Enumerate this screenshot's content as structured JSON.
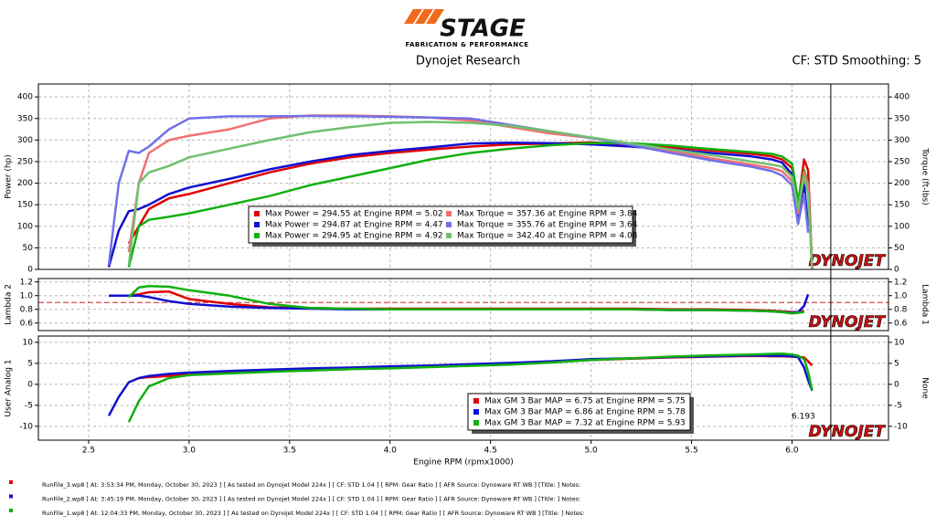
{
  "header": {
    "logo": "STAGE",
    "logo_subtitle": "FABRICATION & PERFORMANCE",
    "title": "Dynojet Research",
    "settings": "CF: STD Smoothing: 5"
  },
  "watermark": "DYNOJET",
  "chart_data": [
    {
      "type": "line",
      "ylabel": "Power (hp)",
      "y2label": "Torque (ft-lbs)",
      "xlim": [
        2.25,
        6.48
      ],
      "ylim": [
        0,
        430
      ],
      "yticks": [
        0,
        50,
        100,
        150,
        200,
        250,
        300,
        350,
        400
      ],
      "y2lim": [
        0,
        430
      ],
      "y2ticks": [
        0,
        50,
        100,
        150,
        200,
        250,
        300,
        350,
        400
      ],
      "grid": true,
      "x": [
        2.6,
        2.65,
        2.7,
        2.75,
        2.8,
        2.9,
        3.0,
        3.2,
        3.4,
        3.6,
        3.8,
        4.0,
        4.2,
        4.4,
        4.6,
        4.8,
        5.0,
        5.2,
        5.4,
        5.6,
        5.8,
        5.9,
        5.95,
        6.0,
        6.03,
        6.06,
        6.08,
        6.1
      ],
      "series": [
        {
          "name": "Max Power = 294.55 at Engine RPM = 5.02",
          "color": "#e00000",
          "values": [
            null,
            null,
            60,
            100,
            140,
            165,
            175,
            200,
            225,
            245,
            260,
            270,
            278,
            285,
            290,
            292,
            294.55,
            290,
            283,
            276,
            268,
            262,
            255,
            235,
            150,
            255,
            230,
            0
          ]
        },
        {
          "name": "Max Power = 294.87 at Engine RPM = 4.47",
          "color": "#1010d0",
          "values": [
            5,
            90,
            135,
            140,
            150,
            175,
            190,
            210,
            232,
            250,
            265,
            275,
            283,
            292,
            294,
            293,
            290,
            285,
            278,
            270,
            262,
            255,
            248,
            220,
            120,
            200,
            100,
            null
          ]
        },
        {
          "name": "Max Power = 294.95 at Engine RPM = 4.92",
          "color": "#10b010",
          "values": [
            null,
            null,
            5,
            100,
            115,
            122,
            130,
            150,
            170,
            195,
            215,
            235,
            255,
            270,
            280,
            288,
            293,
            293,
            287,
            279,
            272,
            268,
            262,
            245,
            160,
            230,
            200,
            0
          ]
        },
        {
          "name": "Max Torque = 357.36 at Engine RPM = 3.84",
          "color": "#f07070",
          "axis": "y2",
          "values": [
            null,
            null,
            40,
            200,
            270,
            300,
            310,
            325,
            350,
            357,
            357,
            355,
            352,
            345,
            330,
            315,
            305,
            290,
            275,
            258,
            243,
            235,
            228,
            205,
            130,
            225,
            195,
            0
          ]
        },
        {
          "name": "Max Torque = 355.76 at Engine RPM = 3.64",
          "color": "#7070e8",
          "axis": "y2",
          "values": [
            10,
            200,
            275,
            270,
            285,
            325,
            350,
            355,
            355,
            355.76,
            355,
            354,
            352,
            350,
            335,
            320,
            305,
            288,
            270,
            253,
            238,
            228,
            218,
            195,
            105,
            175,
            85,
            null
          ]
        },
        {
          "name": "Max Torque = 342.40 at Engine RPM = 4.08",
          "color": "#70c070",
          "axis": "y2",
          "values": [
            null,
            null,
            10,
            200,
            225,
            240,
            260,
            280,
            300,
            318,
            330,
            340,
            342,
            340,
            333,
            320,
            306,
            292,
            278,
            265,
            250,
            243,
            238,
            215,
            140,
            215,
            175,
            0
          ]
        }
      ]
    },
    {
      "type": "line",
      "ylabel": "Lambda 2",
      "y2label": "Lambda 1",
      "xlim": [
        2.25,
        6.48
      ],
      "ylim": [
        0.49,
        1.25
      ],
      "yticks": [
        0.6,
        0.8,
        {
          "value": 1,
          "label": "1.0"
        },
        1.2
      ],
      "y2lim": [
        0.49,
        1.25
      ],
      "y2ticks": [
        0.6,
        0.8,
        {
          "value": 1,
          "label": "1.0"
        },
        1.2
      ],
      "grid": true,
      "reference_line": 0.9,
      "reference_color": "#d02020",
      "x": [
        2.6,
        2.65,
        2.7,
        2.75,
        2.8,
        2.9,
        3.0,
        3.2,
        3.4,
        3.6,
        3.8,
        4.0,
        4.2,
        4.4,
        4.6,
        4.8,
        5.0,
        5.2,
        5.4,
        5.6,
        5.8,
        5.9,
        5.95,
        6.0,
        6.03,
        6.06,
        6.08,
        6.1
      ],
      "series": [
        {
          "color": "#e00000",
          "values": [
            null,
            null,
            1.0,
            1.02,
            1.05,
            1.06,
            0.95,
            0.88,
            0.83,
            0.82,
            0.81,
            0.81,
            0.81,
            0.81,
            0.81,
            0.81,
            0.81,
            0.81,
            0.8,
            0.8,
            0.79,
            0.78,
            0.77,
            0.76,
            0.76,
            0.78,
            null,
            null
          ]
        },
        {
          "color": "#1010d0",
          "values": [
            1.0,
            1.0,
            1.0,
            1.0,
            0.98,
            0.92,
            0.88,
            0.84,
            0.82,
            0.81,
            0.8,
            0.8,
            0.8,
            0.8,
            0.8,
            0.8,
            0.8,
            0.8,
            0.79,
            0.79,
            0.78,
            0.77,
            0.76,
            0.75,
            0.76,
            0.85,
            1.02,
            null
          ]
        },
        {
          "color": "#10b010",
          "values": [
            null,
            null,
            0.98,
            1.12,
            1.14,
            1.13,
            1.08,
            1.0,
            0.88,
            0.82,
            0.81,
            0.8,
            0.8,
            0.8,
            0.8,
            0.8,
            0.8,
            0.8,
            0.79,
            0.79,
            0.78,
            0.77,
            0.76,
            0.74,
            0.75,
            0.76,
            null,
            null
          ]
        }
      ]
    },
    {
      "type": "line",
      "ylabel": "User Analog 1",
      "y2label": "None",
      "xlabel": "Engine RPM (rpmx1000)",
      "xlim": [
        2.25,
        6.48
      ],
      "xticks": [
        2.5,
        {
          "value": 3,
          "label": "3.0"
        },
        3.5,
        {
          "value": 4,
          "label": "4.0"
        },
        4.5,
        {
          "value": 5,
          "label": "5.0"
        },
        5.5,
        {
          "value": 6,
          "label": "6.0"
        }
      ],
      "ylim": [
        -13.3,
        11.5
      ],
      "yticks": [
        -10,
        -5,
        0,
        5,
        10
      ],
      "y2lim": [
        -13.3,
        11.5
      ],
      "y2ticks": [
        -10,
        -5,
        0,
        5,
        10
      ],
      "grid": true,
      "cursor": 6.193,
      "x": [
        2.6,
        2.65,
        2.7,
        2.75,
        2.8,
        2.9,
        3.0,
        3.2,
        3.4,
        3.6,
        3.8,
        4.0,
        4.2,
        4.4,
        4.6,
        4.8,
        5.0,
        5.2,
        5.4,
        5.6,
        5.8,
        5.9,
        5.95,
        6.0,
        6.03,
        6.06,
        6.08,
        6.1
      ],
      "series": [
        {
          "name": "Max GM 3 Bar MAP = 6.75 at Engine RPM = 5.75",
          "color": "#e00000",
          "values": [
            null,
            null,
            null,
            1.5,
            1.7,
            2.0,
            2.3,
            2.8,
            3.2,
            3.5,
            3.8,
            4.1,
            4.4,
            4.7,
            5.0,
            5.4,
            5.8,
            6.1,
            6.4,
            6.6,
            6.75,
            6.7,
            6.7,
            6.6,
            6.5,
            6.4,
            5.5,
            4.5
          ]
        },
        {
          "name": "Max GM 3 Bar MAP = 6.86 at Engine RPM = 5.78",
          "color": "#1010d0",
          "values": [
            -7.5,
            -3,
            0.5,
            1.5,
            2.0,
            2.5,
            2.8,
            3.2,
            3.5,
            3.8,
            4.0,
            4.3,
            4.5,
            4.8,
            5.1,
            5.5,
            6.0,
            6.2,
            6.5,
            6.7,
            6.86,
            6.8,
            6.8,
            6.7,
            6.5,
            4.0,
            1.0,
            -1.5
          ]
        },
        {
          "name": "Max GM 3 Bar MAP = 7.32 at Engine RPM = 5.93",
          "color": "#10b010",
          "values": [
            null,
            null,
            -9,
            -4,
            -0.5,
            1.5,
            2.2,
            2.6,
            3.0,
            3.3,
            3.6,
            3.8,
            4.1,
            4.4,
            4.7,
            5.2,
            5.8,
            6.2,
            6.6,
            6.9,
            7.1,
            7.25,
            7.32,
            7.1,
            6.8,
            6.0,
            3.0,
            -1.5
          ]
        }
      ]
    }
  ],
  "footer": {
    "runs": [
      {
        "color": "#e00000",
        "text": "RunFile_3.wp8   [ At: 3:53:34 PM, Monday, October 30, 2023 ]  [ As tested on Dynojet Model 224x ]  [ CF: STD 1.04 ]  [ RPM: Gear Ratio ]  [ AFR Source: Dynoware RT WB ]  [Title: ]   Notes:"
      },
      {
        "color": "#1010d0",
        "text": "RunFile_2.wp8   [ At: 3:45:19 PM, Monday, October 30, 2023 ]  [ As tested on Dynojet Model 224x ]  [ CF: STD 1.04 ]  [ RPM: Gear Ratio ]  [ AFR Source: Dynoware RT WB ]  [Title: ]   Notes:"
      },
      {
        "color": "#10b010",
        "text": "RunFile_1.wp8   [ At: 12:04:33 PM, Monday, October 30, 2023 ]  [ As tested on Dynojet Model 224x ]  [ CF: STD 1.04 ]  [ RPM: Gear Ratio ]  [ AFR Source: Dynoware RT WB ]  [Title: ]   Notes:"
      }
    ]
  }
}
